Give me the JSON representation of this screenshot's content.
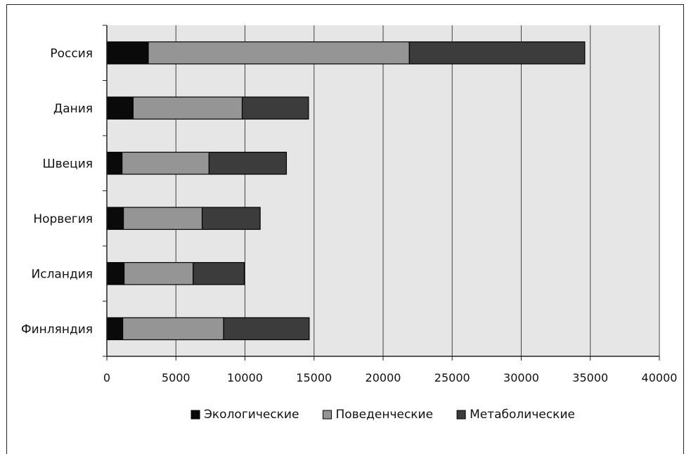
{
  "chart_data": {
    "type": "bar",
    "orientation": "horizontal",
    "stacked": true,
    "categories": [
      "Россия",
      "Дания",
      "Швеция",
      "Норвегия",
      "Исландия",
      "Финляндия"
    ],
    "series": [
      {
        "name": "Экологические",
        "values": [
          3000,
          1900,
          1100,
          1200,
          1250,
          1150
        ],
        "color": "#0a0a0a"
      },
      {
        "name": "Поведенческие",
        "values": [
          18900,
          7900,
          6300,
          5700,
          5000,
          7300
        ],
        "color": "#959595"
      },
      {
        "name": "Метаболические",
        "values": [
          12700,
          4800,
          5600,
          4200,
          3700,
          6200
        ],
        "color": "#3c3c3c"
      }
    ],
    "xlim": [
      0,
      40000
    ],
    "xticks": [
      "0",
      "5000",
      "10000",
      "15000",
      "20000",
      "25000",
      "30000",
      "35000",
      "40000"
    ],
    "grid": true,
    "legend_position": "bottom",
    "colors": {
      "plot_background": "#e6e6e6",
      "gridline": "#444444",
      "bar_outline": "#000000"
    }
  }
}
